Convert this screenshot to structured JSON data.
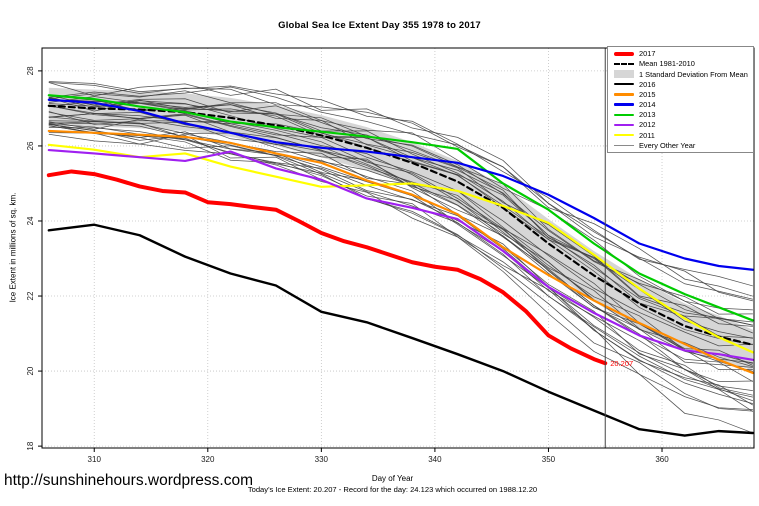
{
  "title": "Global Sea Ice Extent Day 355 1978 to 2017",
  "ylabel": "Ice Extent in millions of sq. km.",
  "watermark_url": "http://sunshinehours.wordpress.com",
  "footer": {
    "xlabel": "Day of Year",
    "caption": "Today's Ice Extent: 20.207  - Record for the day: 24.123 which occurred on 1988.12.20"
  },
  "annotation": {
    "text": "20.207",
    "day": 355,
    "value": 20.207,
    "color": "#FF0000"
  },
  "legend": {
    "items": [
      {
        "label": "2017",
        "type": "thick",
        "color": "#FF0000"
      },
      {
        "label": "Mean 1981-2010",
        "type": "dashed",
        "color": "#000000"
      },
      {
        "label": "1 Standard Deviation From Mean",
        "type": "band",
        "color": "#D6D6D6"
      },
      {
        "label": "2016",
        "type": "line",
        "color": "#000000"
      },
      {
        "label": "2015",
        "type": "line",
        "color": "#FF8C00"
      },
      {
        "label": "2014",
        "type": "line",
        "color": "#0000EE"
      },
      {
        "label": "2013",
        "type": "line",
        "color": "#00CC00"
      },
      {
        "label": "2012",
        "type": "line",
        "color": "#A020F0"
      },
      {
        "label": "2011",
        "type": "line",
        "color": "#FFFF00"
      },
      {
        "label": "Every Other Year",
        "type": "thin",
        "color": "#8a8a8a"
      }
    ]
  },
  "chart_data": {
    "type": "line",
    "title": "Global Sea Ice Extent Day 355 1978 to 2017",
    "xlabel": "Day of Year",
    "ylabel": "Ice Extent in millions of sq. km.",
    "x_range": [
      305.4,
      368.1
    ],
    "y_range": [
      17.95,
      28.61
    ],
    "x_ticks": [
      310,
      320,
      330,
      340,
      350,
      360
    ],
    "y_ticks": [
      18,
      20,
      22,
      24,
      26,
      28
    ],
    "grid": "dotted",
    "legend_position": "top-right",
    "vline_x": 355,
    "x": [
      306,
      310,
      314,
      318,
      322,
      326,
      330,
      334,
      338,
      342,
      346,
      350,
      354,
      358,
      362,
      365,
      368
    ],
    "band": {
      "name": "1 Standard Deviation From Mean",
      "color": "#D6D6D6",
      "top": [
        27.55,
        27.5,
        27.46,
        27.4,
        27.28,
        27.08,
        26.82,
        26.5,
        26.1,
        25.6,
        24.95,
        24.05,
        23.2,
        22.45,
        21.8,
        21.48,
        21.1
      ],
      "bottom": [
        26.6,
        26.52,
        26.47,
        26.4,
        26.24,
        26.0,
        25.7,
        25.35,
        24.95,
        24.45,
        23.7,
        22.7,
        21.85,
        21.12,
        20.58,
        20.3,
        20.02
      ]
    },
    "series": [
      {
        "name": "Mean 1981-2010",
        "color": "#000000",
        "width": 2.2,
        "dash": "6 4",
        "values": [
          27.07,
          27.0,
          26.97,
          26.9,
          26.75,
          26.55,
          26.28,
          25.95,
          25.55,
          25.05,
          24.35,
          23.4,
          22.55,
          21.8,
          21.2,
          20.92,
          20.7
        ]
      },
      {
        "name": "2011",
        "color": "#FFFF00",
        "width": 2.2,
        "values": [
          26.03,
          25.9,
          25.7,
          25.8,
          25.45,
          25.18,
          24.91,
          24.95,
          25.0,
          24.8,
          24.4,
          23.95,
          23.1,
          22.2,
          21.4,
          20.9,
          20.5
        ]
      },
      {
        "name": "2012",
        "color": "#A020F0",
        "width": 2.2,
        "values": [
          25.89,
          25.8,
          25.7,
          25.6,
          25.85,
          25.4,
          25.1,
          24.6,
          24.35,
          24.05,
          23.2,
          22.24,
          21.55,
          20.95,
          20.55,
          20.45,
          20.3
        ]
      },
      {
        "name": "2015",
        "color": "#FF8C00",
        "width": 2.2,
        "values": [
          26.4,
          26.35,
          26.3,
          26.24,
          26.08,
          25.8,
          25.55,
          25.08,
          24.7,
          24.18,
          23.3,
          22.56,
          21.88,
          21.28,
          20.72,
          20.3,
          19.95
        ]
      },
      {
        "name": "2013",
        "color": "#00CC00",
        "width": 2.2,
        "values": [
          27.35,
          27.25,
          27.05,
          26.9,
          26.65,
          26.5,
          26.38,
          26.25,
          26.1,
          25.92,
          25.0,
          24.3,
          23.4,
          22.6,
          22.05,
          21.7,
          21.35
        ]
      },
      {
        "name": "2014",
        "color": "#0000EE",
        "width": 2.2,
        "values": [
          27.23,
          27.15,
          26.93,
          26.6,
          26.35,
          26.1,
          25.95,
          25.85,
          25.7,
          25.55,
          25.2,
          24.7,
          24.08,
          23.4,
          23.0,
          22.8,
          22.7
        ]
      },
      {
        "name": "2016",
        "color": "#000000",
        "width": 2.4,
        "values": [
          23.75,
          23.9,
          23.62,
          23.05,
          22.6,
          22.28,
          21.58,
          21.3,
          20.88,
          20.45,
          20.0,
          19.45,
          18.95,
          18.45,
          18.28,
          18.4,
          18.35
        ]
      },
      {
        "name": "2017",
        "color": "#FF0000",
        "width": 4,
        "x": [
          306,
          308,
          310,
          312,
          314,
          316,
          318,
          320,
          322,
          324,
          326,
          328,
          330,
          332,
          334,
          336,
          338,
          340,
          342,
          344,
          346,
          348,
          350,
          352,
          354,
          355
        ],
        "values": [
          25.22,
          25.32,
          25.25,
          25.1,
          24.92,
          24.8,
          24.76,
          24.5,
          24.45,
          24.37,
          24.3,
          24.0,
          23.68,
          23.46,
          23.3,
          23.1,
          22.9,
          22.78,
          22.7,
          22.45,
          22.1,
          21.6,
          20.95,
          20.6,
          20.32,
          20.21
        ]
      }
    ],
    "background_years": {
      "label": "Every Other Year",
      "color": "#404040",
      "count": 34,
      "seed": 11
    }
  }
}
